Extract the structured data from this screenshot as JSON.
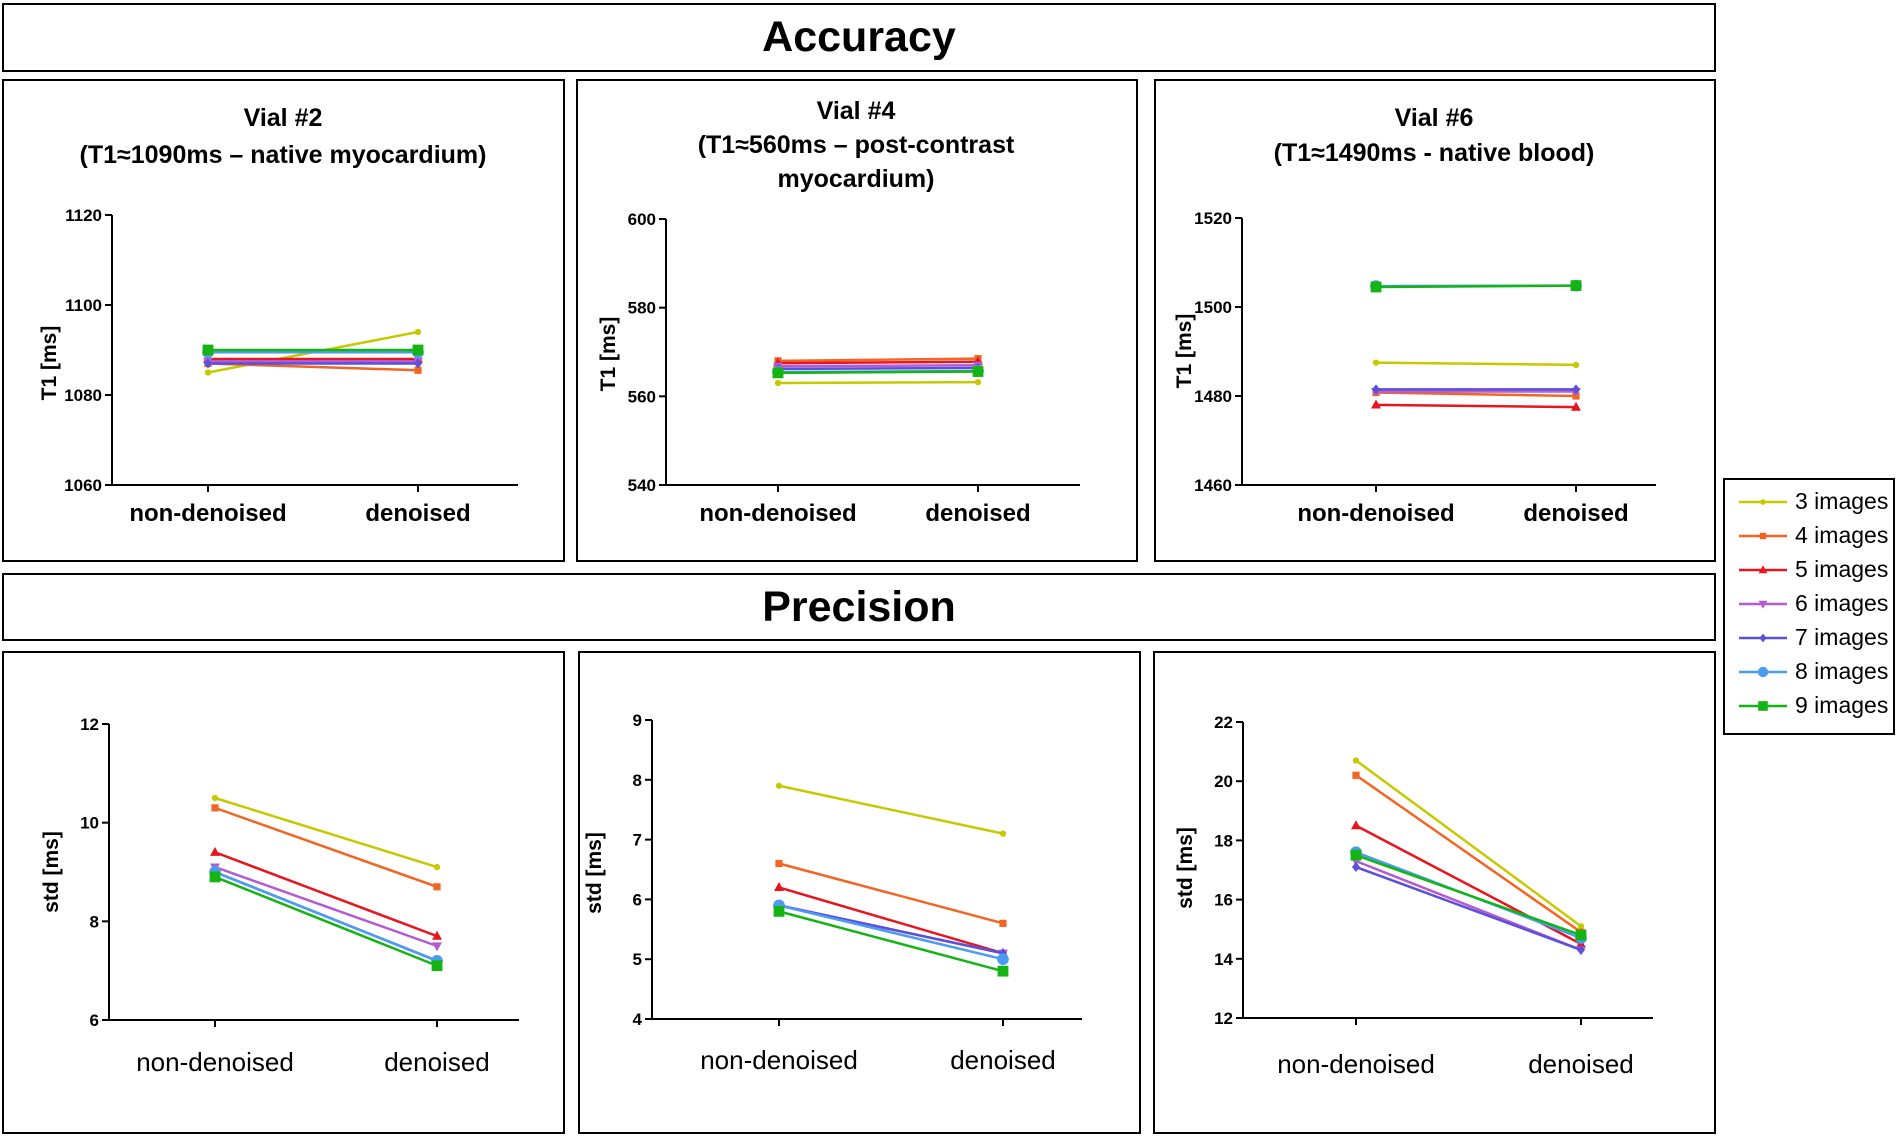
{
  "banners": {
    "accuracy": "Accuracy",
    "precision": "Precision"
  },
  "legend": [
    {
      "label": "3 images",
      "color": "#c8c800",
      "marker": "circle-small"
    },
    {
      "label": "4 images",
      "color": "#f26522",
      "marker": "square-small"
    },
    {
      "label": "5 images",
      "color": "#e8141e",
      "marker": "triangle"
    },
    {
      "label": "6 images",
      "color": "#b45ad2",
      "marker": "triangle-down"
    },
    {
      "label": "7 images",
      "color": "#5a50dc",
      "marker": "diamond"
    },
    {
      "label": "8 images",
      "color": "#4b9bf0",
      "marker": "circle"
    },
    {
      "label": "9 images",
      "color": "#14b414",
      "marker": "square"
    }
  ],
  "chart_data": [
    {
      "type": "line",
      "title": [
        "Vial #2",
        "(T1≈1090ms – native myocardium)"
      ],
      "xlabel": "",
      "ylabel": "T1 [ms]",
      "categories": [
        "non-denoised",
        "denoised"
      ],
      "ylim": [
        1060,
        1120
      ],
      "yticks": [
        "1060",
        "1080",
        "1100",
        "1120"
      ],
      "series": [
        {
          "name": "3 images",
          "values": [
            1085,
            1094
          ]
        },
        {
          "name": "4 images",
          "values": [
            1087,
            1085.5
          ]
        },
        {
          "name": "5 images",
          "values": [
            1088,
            1088
          ]
        },
        {
          "name": "6 images",
          "values": [
            1087.5,
            1087.5
          ]
        },
        {
          "name": "7 images",
          "values": [
            1087,
            1087
          ]
        },
        {
          "name": "8 images",
          "values": [
            1089.5,
            1089.5
          ]
        },
        {
          "name": "9 images",
          "values": [
            1090,
            1090
          ]
        }
      ]
    },
    {
      "type": "line",
      "title": [
        "Vial #4",
        "(T1≈560ms – post-contrast",
        "myocardium)"
      ],
      "xlabel": "",
      "ylabel": "T1 [ms]",
      "categories": [
        "non-denoised",
        "denoised"
      ],
      "ylim": [
        540,
        600
      ],
      "yticks": [
        "540",
        "560",
        "580",
        "600"
      ],
      "series": [
        {
          "name": "3 images",
          "values": [
            563,
            563.2
          ]
        },
        {
          "name": "4 images",
          "values": [
            568,
            568.5
          ]
        },
        {
          "name": "5 images",
          "values": [
            567.5,
            567.8
          ]
        },
        {
          "name": "6 images",
          "values": [
            566.8,
            567
          ]
        },
        {
          "name": "7 images",
          "values": [
            566.2,
            566.4
          ]
        },
        {
          "name": "8 images",
          "values": [
            565.5,
            565.7
          ]
        },
        {
          "name": "9 images",
          "values": [
            565.3,
            565.6
          ]
        }
      ]
    },
    {
      "type": "line",
      "title": [
        "Vial #6",
        "(T1≈1490ms - native blood)"
      ],
      "xlabel": "",
      "ylabel": "T1 [ms]",
      "categories": [
        "non-denoised",
        "denoised"
      ],
      "ylim": [
        1460,
        1520
      ],
      "yticks": [
        "1460",
        "1480",
        "1500",
        "1520"
      ],
      "series": [
        {
          "name": "3 images",
          "values": [
            1487.5,
            1487
          ]
        },
        {
          "name": "4 images",
          "values": [
            1480.8,
            1480
          ]
        },
        {
          "name": "5 images",
          "values": [
            1478,
            1477.5
          ]
        },
        {
          "name": "6 images",
          "values": [
            1481,
            1481
          ]
        },
        {
          "name": "7 images",
          "values": [
            1481.5,
            1481.5
          ]
        },
        {
          "name": "8 images",
          "values": [
            1504.7,
            1504.8
          ]
        },
        {
          "name": "9 images",
          "values": [
            1504.5,
            1504.8
          ]
        }
      ]
    },
    {
      "type": "line",
      "title": [],
      "xlabel": "",
      "ylabel": "std [ms]",
      "categories": [
        "non-denoised",
        "denoised"
      ],
      "ylim": [
        6,
        12
      ],
      "yticks": [
        "6",
        "8",
        "10",
        "12"
      ],
      "series": [
        {
          "name": "3 images",
          "values": [
            10.5,
            9.1
          ]
        },
        {
          "name": "4 images",
          "values": [
            10.3,
            8.7
          ]
        },
        {
          "name": "5 images",
          "values": [
            9.4,
            7.7
          ]
        },
        {
          "name": "6 images",
          "values": [
            9.1,
            7.5
          ]
        },
        {
          "name": "7 images",
          "values": [
            9.0,
            7.2
          ]
        },
        {
          "name": "8 images",
          "values": [
            9.0,
            7.2
          ]
        },
        {
          "name": "9 images",
          "values": [
            8.9,
            7.1
          ]
        }
      ]
    },
    {
      "type": "line",
      "title": [],
      "xlabel": "",
      "ylabel": "std [ms]",
      "categories": [
        "non-denoised",
        "denoised"
      ],
      "ylim": [
        4,
        9
      ],
      "yticks": [
        "4",
        "5",
        "6",
        "7",
        "8",
        "9"
      ],
      "series": [
        {
          "name": "3 images",
          "values": [
            7.9,
            7.1
          ]
        },
        {
          "name": "4 images",
          "values": [
            6.6,
            5.6
          ]
        },
        {
          "name": "5 images",
          "values": [
            6.2,
            5.1
          ]
        },
        {
          "name": "6 images",
          "values": [
            5.9,
            5.1
          ]
        },
        {
          "name": "7 images",
          "values": [
            5.9,
            5.1
          ]
        },
        {
          "name": "8 images",
          "values": [
            5.9,
            5.0
          ]
        },
        {
          "name": "9 images",
          "values": [
            5.8,
            4.8
          ]
        }
      ]
    },
    {
      "type": "line",
      "title": [],
      "xlabel": "",
      "ylabel": "std [ms]",
      "categories": [
        "non-denoised",
        "denoised"
      ],
      "ylim": [
        12,
        22
      ],
      "yticks": [
        "12",
        "14",
        "16",
        "18",
        "20",
        "22"
      ],
      "series": [
        {
          "name": "3 images",
          "values": [
            20.7,
            15.1
          ]
        },
        {
          "name": "4 images",
          "values": [
            20.2,
            14.9
          ]
        },
        {
          "name": "5 images",
          "values": [
            18.5,
            14.5
          ]
        },
        {
          "name": "6 images",
          "values": [
            17.3,
            14.3
          ]
        },
        {
          "name": "7 images",
          "values": [
            17.1,
            14.3
          ]
        },
        {
          "name": "8 images",
          "values": [
            17.6,
            14.7
          ]
        },
        {
          "name": "9 images",
          "values": [
            17.5,
            14.8
          ]
        }
      ]
    }
  ]
}
